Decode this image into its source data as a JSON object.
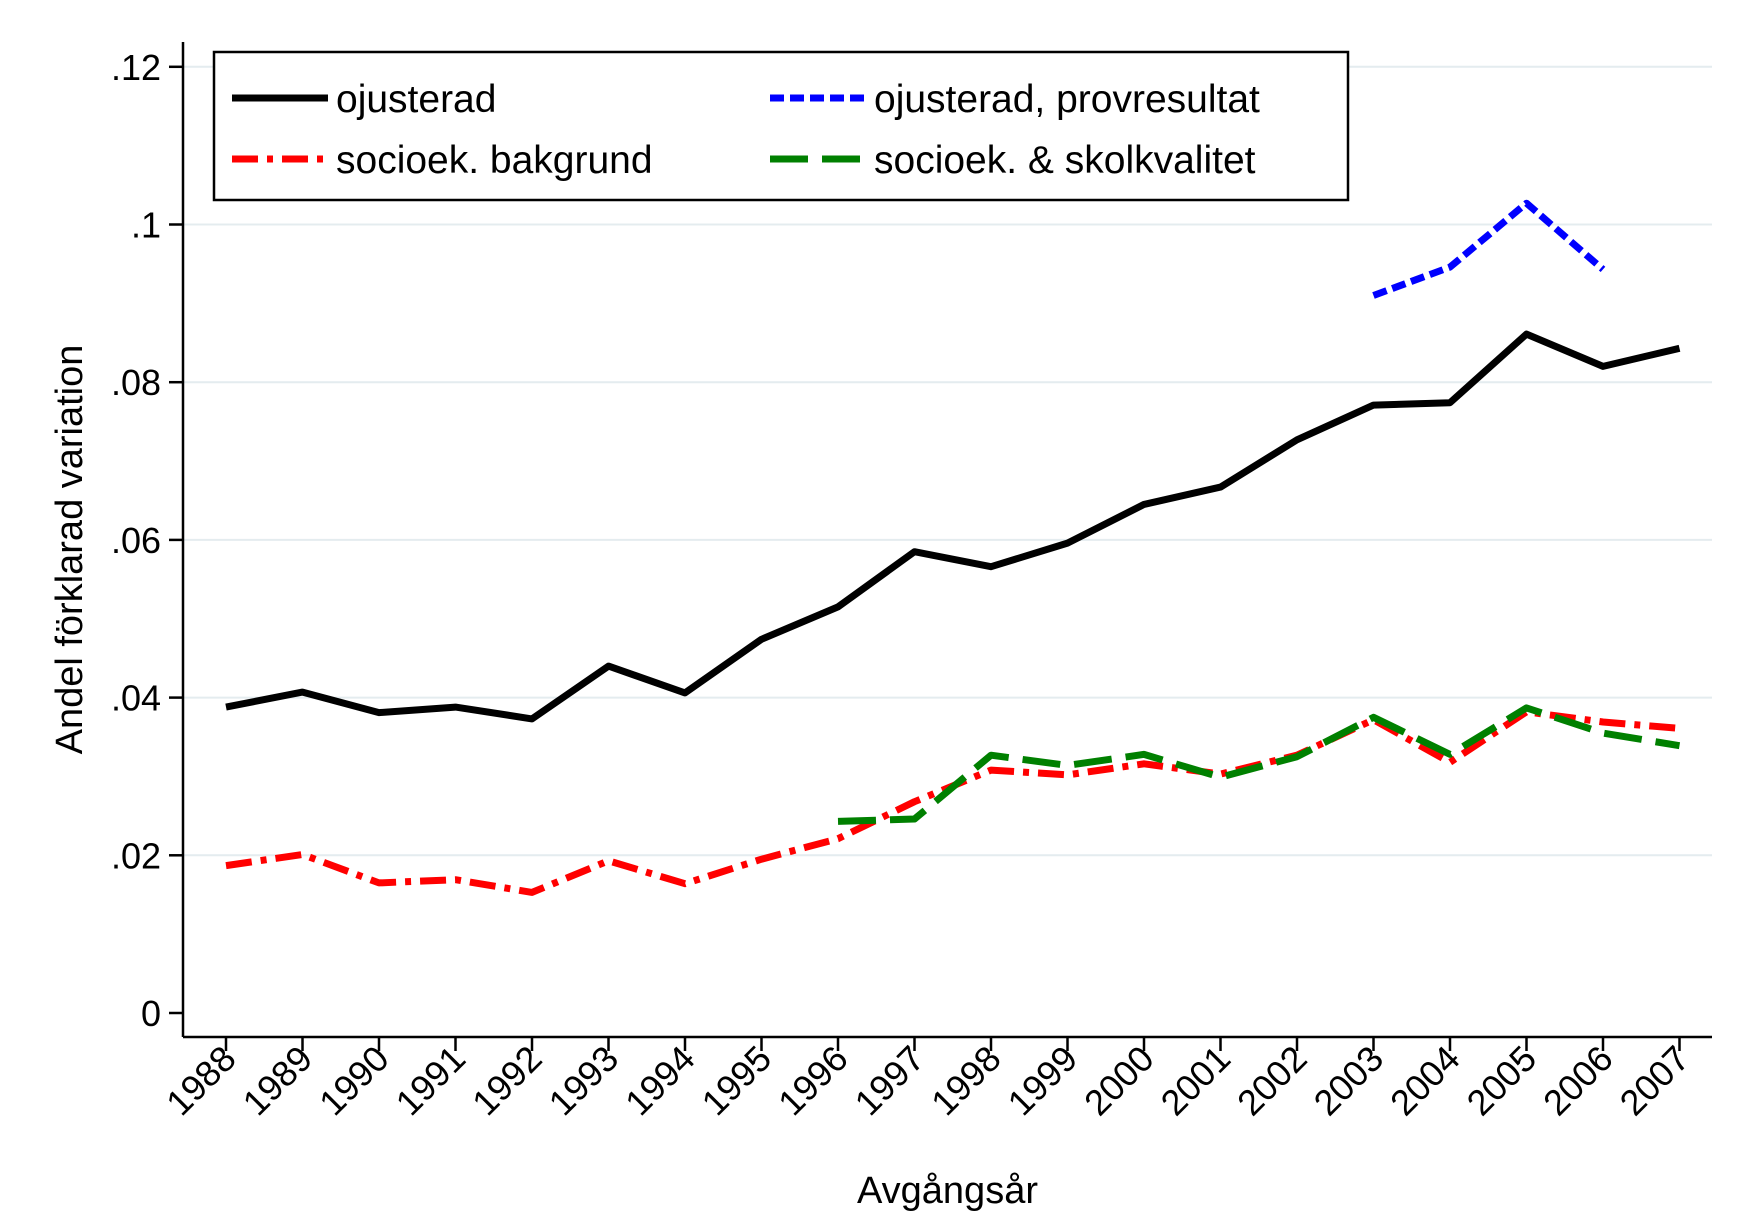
{
  "chart_data": {
    "type": "line",
    "title": "",
    "xlabel": "Avgångsår",
    "ylabel": "Andel förklarad variation",
    "categories": [
      "1988",
      "1989",
      "1990",
      "1991",
      "1992",
      "1993",
      "1994",
      "1995",
      "1996",
      "1997",
      "1998",
      "1999",
      "2000",
      "2001",
      "2002",
      "2003",
      "2004",
      "2005",
      "2006",
      "2007"
    ],
    "ylim": [
      0,
      0.12
    ],
    "yticks": [
      0,
      0.02,
      0.04,
      0.06,
      0.08,
      0.1,
      0.12
    ],
    "ytick_labels": [
      "0",
      ".02",
      ".04",
      ".06",
      ".08",
      ".1",
      ".12"
    ],
    "grid": true,
    "legend_position": "top",
    "series": [
      {
        "name": "ojusterad",
        "color": "#000000",
        "style": "solid",
        "values": [
          0.0388,
          0.0407,
          0.0381,
          0.0388,
          0.0373,
          0.044,
          0.0406,
          0.0474,
          0.0515,
          0.0585,
          0.0566,
          0.0596,
          0.0645,
          0.0667,
          0.0727,
          0.0771,
          0.0774,
          0.0861,
          0.082,
          0.0843
        ]
      },
      {
        "name": "ojusterad, provresultat",
        "color": "#0000ff",
        "style": "short-dash",
        "values": [
          null,
          null,
          null,
          null,
          null,
          null,
          null,
          null,
          null,
          null,
          null,
          null,
          null,
          null,
          null,
          0.091,
          0.0946,
          0.1027,
          0.0943,
          null
        ]
      },
      {
        "name": "socioek. bakgrund",
        "color": "#ff0000",
        "style": "dash-dot",
        "values": [
          0.0187,
          0.0201,
          0.0165,
          0.0169,
          0.0153,
          0.0193,
          0.0164,
          0.0195,
          0.0221,
          0.0268,
          0.0308,
          0.0302,
          0.0316,
          0.0303,
          0.0327,
          0.0372,
          0.0318,
          0.0382,
          0.0369,
          0.0361
        ]
      },
      {
        "name": "socioek. & skolkvalitet",
        "color": "#008000",
        "style": "long-dash",
        "values": [
          null,
          null,
          null,
          null,
          null,
          null,
          null,
          null,
          0.0243,
          0.0246,
          0.0327,
          0.0314,
          0.0328,
          0.0299,
          0.0325,
          0.0375,
          0.0328,
          0.0387,
          0.0355,
          0.0339
        ]
      }
    ]
  }
}
